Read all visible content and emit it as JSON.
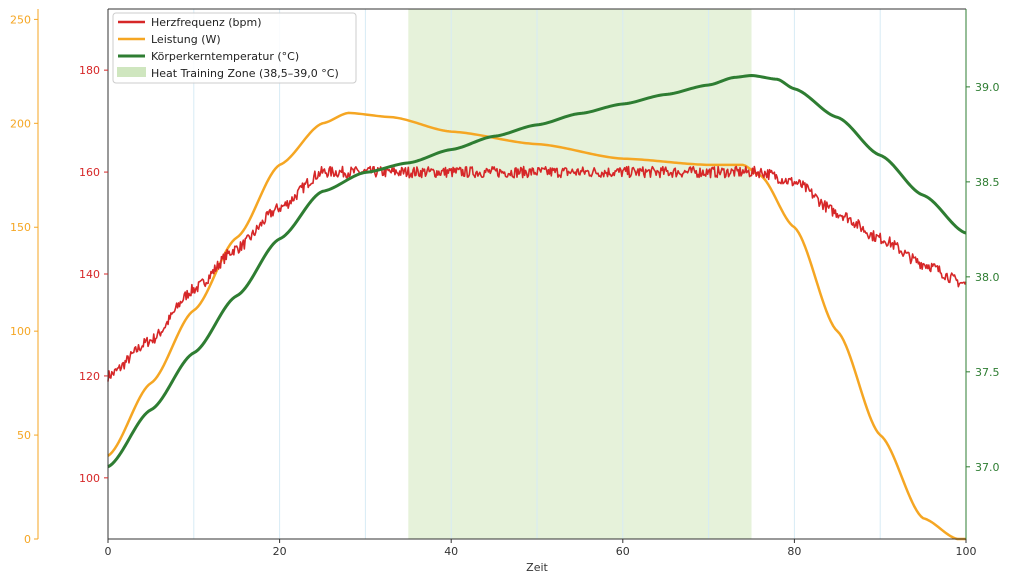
{
  "colors": {
    "heart_rate": "#d62728",
    "power": "#f5a623",
    "core_temp": "#2e7d32",
    "zone_fill": "#e6f2da",
    "grid_line": "#d7ebf5",
    "axis": "#333333"
  },
  "chart_data": {
    "type": "line",
    "xlabel": "Zeit",
    "xlim": [
      0,
      100
    ],
    "x_ticks": [
      0,
      20,
      40,
      60,
      80,
      100
    ],
    "vertical_gridlines_x": [
      10,
      20,
      30,
      40,
      50,
      60,
      70,
      80,
      90
    ],
    "axes": {
      "heart_rate": {
        "side": "left-inner",
        "lim": [
          88,
          192
        ],
        "ticks": [
          100,
          120,
          140,
          160,
          180
        ]
      },
      "power": {
        "side": "left-outer",
        "lim": [
          0,
          255
        ],
        "ticks": [
          0,
          50,
          100,
          150,
          200,
          250
        ]
      },
      "core_temp": {
        "side": "right",
        "lim": [
          36.62,
          39.41
        ],
        "ticks": [
          37.0,
          37.5,
          38.0,
          38.5,
          39.0
        ],
        "tick_format": "0.0"
      }
    },
    "zone": {
      "label": "Heat Training Zone (38,5–39,0 °C)",
      "x_start": 35,
      "x_end": 75
    },
    "legend_position": "top-left",
    "series": [
      {
        "key": "heart_rate",
        "name": "Herzfrequenz (bpm)",
        "axis": "heart_rate",
        "noisy": true,
        "points": [
          [
            0,
            120
          ],
          [
            5,
            127
          ],
          [
            10,
            137
          ],
          [
            15,
            145
          ],
          [
            20,
            153
          ],
          [
            25,
            160
          ],
          [
            30,
            160
          ],
          [
            40,
            160
          ],
          [
            50,
            160
          ],
          [
            60,
            160
          ],
          [
            70,
            160
          ],
          [
            76,
            160
          ],
          [
            80,
            158
          ],
          [
            85,
            152
          ],
          [
            90,
            147
          ],
          [
            95,
            142
          ],
          [
            100,
            138
          ]
        ]
      },
      {
        "key": "power",
        "name": "Leistung (W)",
        "axis": "power",
        "points": [
          [
            0,
            40
          ],
          [
            5,
            75
          ],
          [
            10,
            110
          ],
          [
            15,
            145
          ],
          [
            20,
            180
          ],
          [
            25,
            200
          ],
          [
            28,
            205
          ],
          [
            33,
            203
          ],
          [
            40,
            196
          ],
          [
            50,
            190
          ],
          [
            60,
            183
          ],
          [
            70,
            180
          ],
          [
            74,
            180
          ],
          [
            76,
            175
          ],
          [
            80,
            150
          ],
          [
            85,
            100
          ],
          [
            90,
            50
          ],
          [
            95,
            10
          ],
          [
            99,
            0
          ],
          [
            100,
            0
          ]
        ]
      },
      {
        "key": "core_temp",
        "name": "Körperkerntemperatur (°C)",
        "axis": "core_temp",
        "points": [
          [
            0,
            37.0
          ],
          [
            5,
            37.3
          ],
          [
            10,
            37.6
          ],
          [
            15,
            37.9
          ],
          [
            20,
            38.2
          ],
          [
            25,
            38.45
          ],
          [
            30,
            38.55
          ],
          [
            35,
            38.6
          ],
          [
            40,
            38.67
          ],
          [
            45,
            38.74
          ],
          [
            50,
            38.8
          ],
          [
            55,
            38.86
          ],
          [
            60,
            38.91
          ],
          [
            65,
            38.96
          ],
          [
            70,
            39.01
          ],
          [
            73,
            39.05
          ],
          [
            75,
            39.06
          ],
          [
            78,
            39.04
          ],
          [
            80,
            38.99
          ],
          [
            85,
            38.84
          ],
          [
            90,
            38.64
          ],
          [
            95,
            38.43
          ],
          [
            100,
            38.23
          ]
        ]
      }
    ]
  }
}
